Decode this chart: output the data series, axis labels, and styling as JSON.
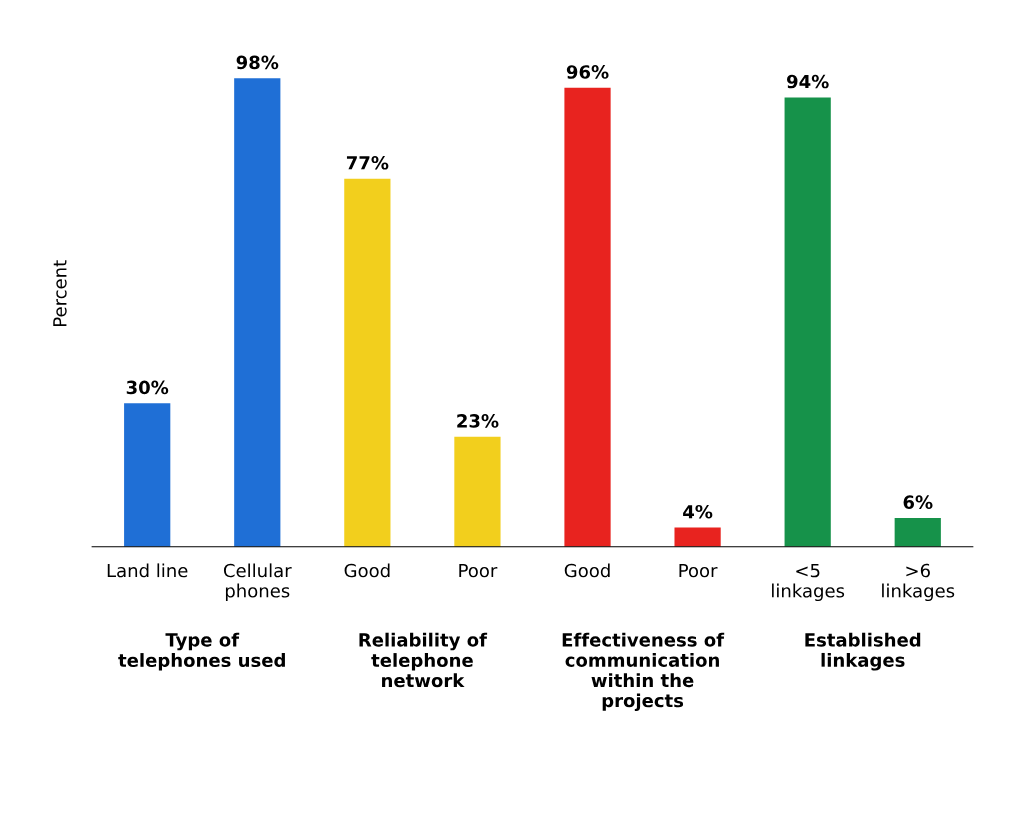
{
  "chart_data": {
    "type": "bar",
    "ylabel": "Percent",
    "categories": [
      "Land line",
      "Cellular\nphones",
      "Good",
      "Poor",
      "Good",
      "Poor",
      "<5\nlinkages",
      ">6\nlinkages"
    ],
    "values": [
      30,
      98,
      77,
      23,
      96,
      4,
      94,
      6
    ],
    "colors": [
      "#1f6fd6",
      "#1f6fd6",
      "#f2cf1d",
      "#f2cf1d",
      "#e8231f",
      "#e8231f",
      "#16924a",
      "#16924a"
    ],
    "value_labels": [
      "30%",
      "98%",
      "77%",
      "23%",
      "96%",
      "4%",
      "94%",
      "6%"
    ],
    "annotations": [
      "Type of\ntelephones used",
      "Reliability of\ntelephone\nnetwork",
      "Effectiveness of\ncommunication\nwithin the\nprojects",
      "Established\nlinkages"
    ],
    "grid": false,
    "legend": false
  }
}
